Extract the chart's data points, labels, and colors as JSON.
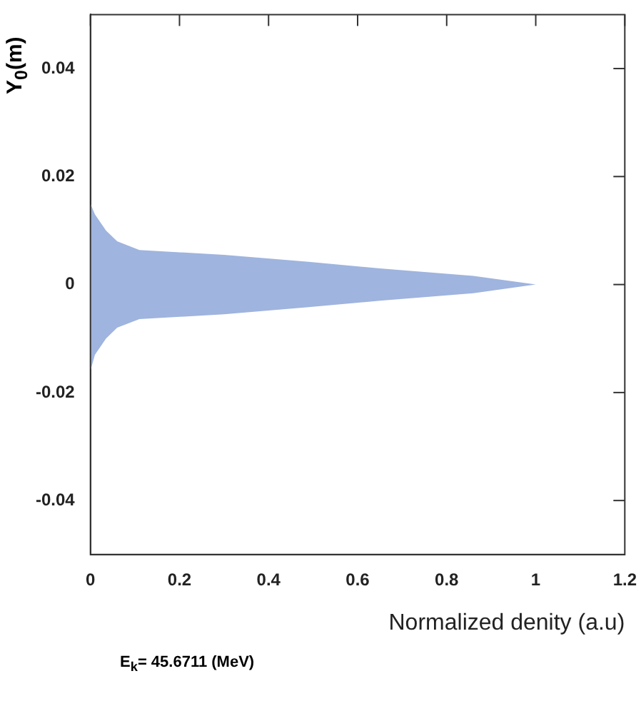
{
  "chart_data": {
    "type": "area",
    "xlabel": "Normalized denity (a.u)",
    "ylabel": "Y$_{0}$(m)",
    "annotations": [
      "E$_{k}$= 45.6711 (MeV)"
    ],
    "series": [
      {
        "color": "#9fb4de",
        "x": [
          0,
          0.01,
          0.035,
          0.06,
          0.11,
          0.3,
          0.49,
          0.65,
          0.86,
          1.0,
          0.86,
          0.65,
          0.49,
          0.3,
          0.11,
          0.06,
          0.035,
          0.01,
          0
        ],
        "values": [
          0.015,
          0.013,
          0.01,
          0.008,
          0.0064,
          0.0055,
          0.0042,
          0.003,
          0.0016,
          0,
          -0.0016,
          -0.003,
          -0.0042,
          -0.0055,
          -0.0064,
          -0.008,
          -0.01,
          -0.013,
          -0.016
        ]
      }
    ],
    "xlim": [
      0,
      1.2
    ],
    "xticks": [
      0,
      0.2,
      0.4,
      0.6,
      0.8,
      1,
      1.2
    ],
    "ylim": [
      -0.05,
      0.05
    ],
    "yticks": [
      -0.04,
      -0.02,
      0,
      0.02,
      0.04
    ],
    "grid": false,
    "legend": false
  }
}
